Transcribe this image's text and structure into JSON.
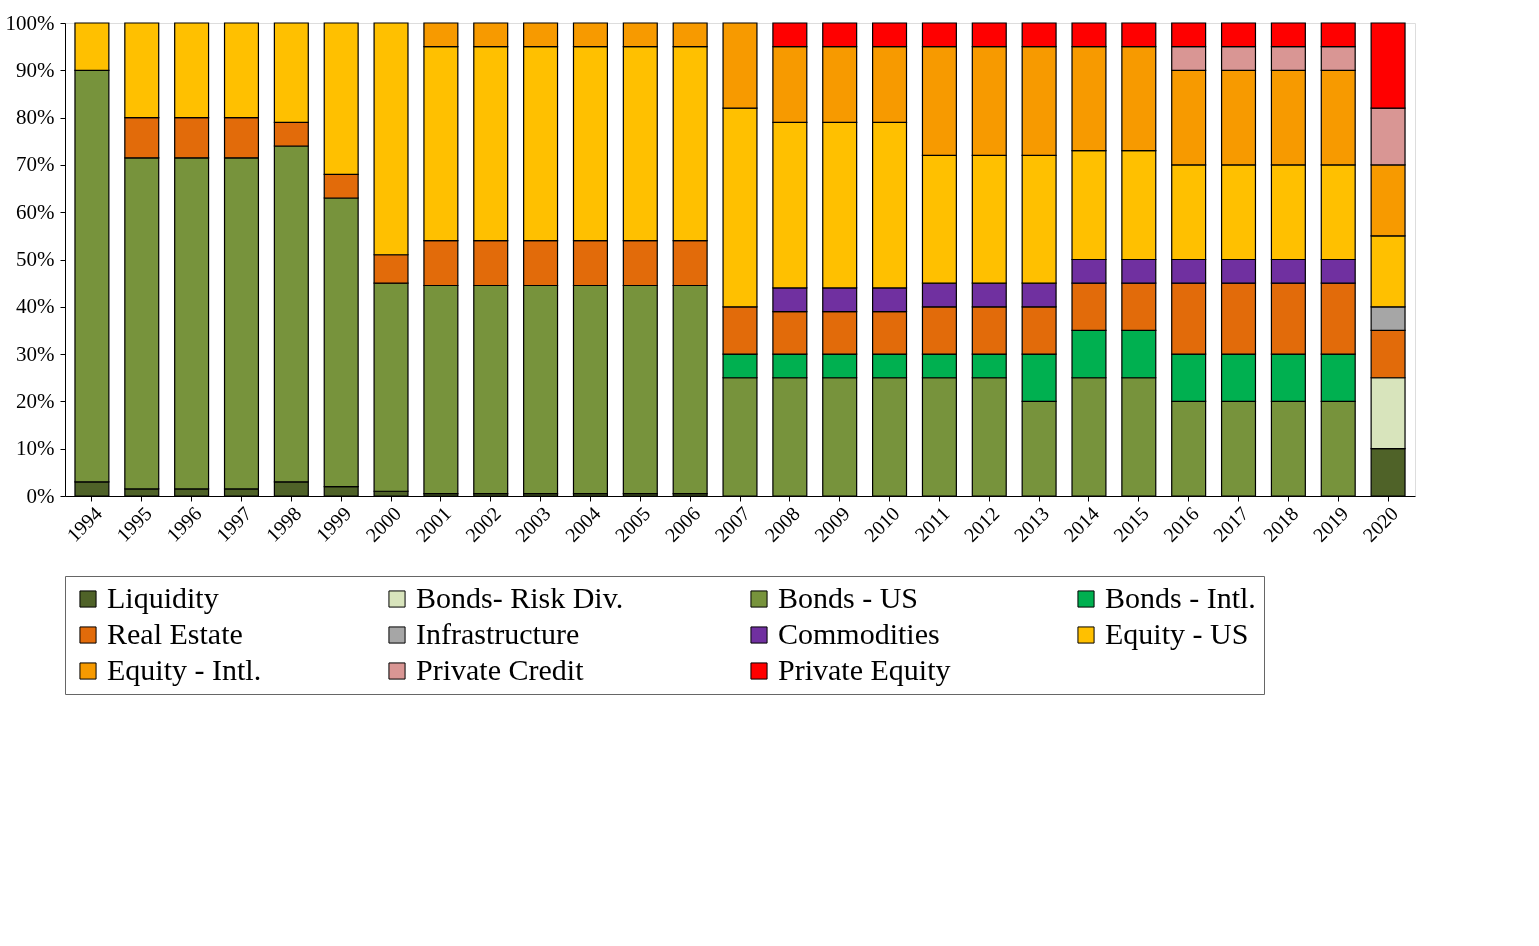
{
  "chart_data": {
    "type": "bar",
    "stacked": true,
    "legend": "bottom",
    "grid": false,
    "categories": [
      "1994",
      "1995",
      "1996",
      "1997",
      "1998",
      "1999",
      "2000",
      "2001",
      "2002",
      "2003",
      "2004",
      "2005",
      "2006",
      "2007",
      "2008",
      "2009",
      "2010",
      "2011",
      "2012",
      "2013",
      "2014",
      "2015",
      "2016",
      "2017",
      "2018",
      "2019",
      "2020"
    ],
    "ylim": [
      0,
      100
    ],
    "yticks": [
      {
        "value": 0,
        "label": "0%"
      },
      {
        "value": 10,
        "label": "10%"
      },
      {
        "value": 20,
        "label": "20%"
      },
      {
        "value": 30,
        "label": "30%"
      },
      {
        "value": 40,
        "label": "40%"
      },
      {
        "value": 50,
        "label": "50%"
      },
      {
        "value": 60,
        "label": "60%"
      },
      {
        "value": 70,
        "label": "70%"
      },
      {
        "value": 80,
        "label": "80%"
      },
      {
        "value": 90,
        "label": "90%"
      },
      {
        "value": 100,
        "label": "100%"
      }
    ],
    "series": [
      {
        "name": "Liquidity",
        "color": "#4f6228",
        "values": [
          3,
          1.5,
          1.5,
          1.5,
          3,
          2,
          1,
          0.5,
          0.5,
          0.5,
          0.5,
          0.5,
          0.5,
          null,
          null,
          null,
          null,
          null,
          null,
          null,
          null,
          null,
          null,
          null,
          null,
          null,
          10
        ]
      },
      {
        "name": "Bonds- Risk Div.",
        "color": "#d8e4bc",
        "values": [
          null,
          null,
          null,
          null,
          null,
          null,
          null,
          null,
          null,
          null,
          null,
          null,
          null,
          null,
          null,
          null,
          null,
          null,
          null,
          null,
          null,
          null,
          null,
          null,
          null,
          null,
          15
        ]
      },
      {
        "name": "Bonds - US",
        "color": "#77933c",
        "values": [
          87,
          70,
          70,
          70,
          71,
          61,
          44,
          44,
          44,
          44,
          44,
          44,
          44,
          25,
          25,
          25,
          25,
          25,
          25,
          20,
          25,
          25,
          20,
          20,
          20,
          20,
          null
        ]
      },
      {
        "name": "Bonds - Intl.",
        "color": "#00b050",
        "values": [
          null,
          null,
          null,
          null,
          null,
          null,
          null,
          null,
          null,
          null,
          null,
          null,
          null,
          5,
          5,
          5,
          5,
          5,
          5,
          10,
          10,
          10,
          10,
          10,
          10,
          10,
          null
        ]
      },
      {
        "name": "Real Estate",
        "color": "#e26b0a",
        "values": [
          null,
          8.5,
          8.5,
          8.5,
          5,
          5,
          6,
          9.5,
          9.5,
          9.5,
          9.5,
          9.5,
          9.5,
          10,
          9,
          9,
          9,
          10,
          10,
          10,
          10,
          10,
          15,
          15,
          15,
          15,
          10
        ]
      },
      {
        "name": "Infrastructure",
        "color": "#a6a6a6",
        "values": [
          null,
          null,
          null,
          null,
          null,
          null,
          null,
          null,
          null,
          null,
          null,
          null,
          null,
          null,
          null,
          null,
          null,
          null,
          null,
          null,
          null,
          null,
          null,
          null,
          null,
          null,
          5
        ]
      },
      {
        "name": "Commodities",
        "color": "#7030a0",
        "values": [
          null,
          null,
          null,
          null,
          null,
          null,
          null,
          null,
          null,
          null,
          null,
          null,
          null,
          null,
          5,
          5,
          5,
          5,
          5,
          5,
          5,
          5,
          5,
          5,
          5,
          5,
          null
        ]
      },
      {
        "name": "Equity - US",
        "color": "#ffc000",
        "values": [
          10,
          20,
          20,
          20,
          21,
          32,
          49,
          41,
          41,
          41,
          41,
          41,
          41,
          42,
          35,
          35,
          35,
          27,
          27,
          27,
          23,
          23,
          20,
          20,
          20,
          20,
          15
        ]
      },
      {
        "name": "Equity - Intl.",
        "color": "#f79a00",
        "values": [
          null,
          null,
          null,
          null,
          null,
          null,
          null,
          5,
          5,
          5,
          5,
          5,
          5,
          18,
          16,
          16,
          16,
          23,
          23,
          23,
          22,
          22,
          20,
          20,
          20,
          20,
          15
        ]
      },
      {
        "name": "Private Credit",
        "color": "#d99694",
        "values": [
          null,
          null,
          null,
          null,
          null,
          null,
          null,
          null,
          null,
          null,
          null,
          null,
          null,
          null,
          null,
          null,
          null,
          null,
          null,
          null,
          null,
          null,
          5,
          5,
          5,
          5,
          12
        ]
      },
      {
        "name": "Private Equity",
        "color": "#ff0000",
        "values": [
          null,
          null,
          null,
          null,
          null,
          null,
          null,
          null,
          null,
          null,
          null,
          null,
          null,
          null,
          5,
          5,
          5,
          5,
          5,
          5,
          5,
          5,
          5,
          5,
          5,
          5,
          18
        ]
      }
    ]
  }
}
